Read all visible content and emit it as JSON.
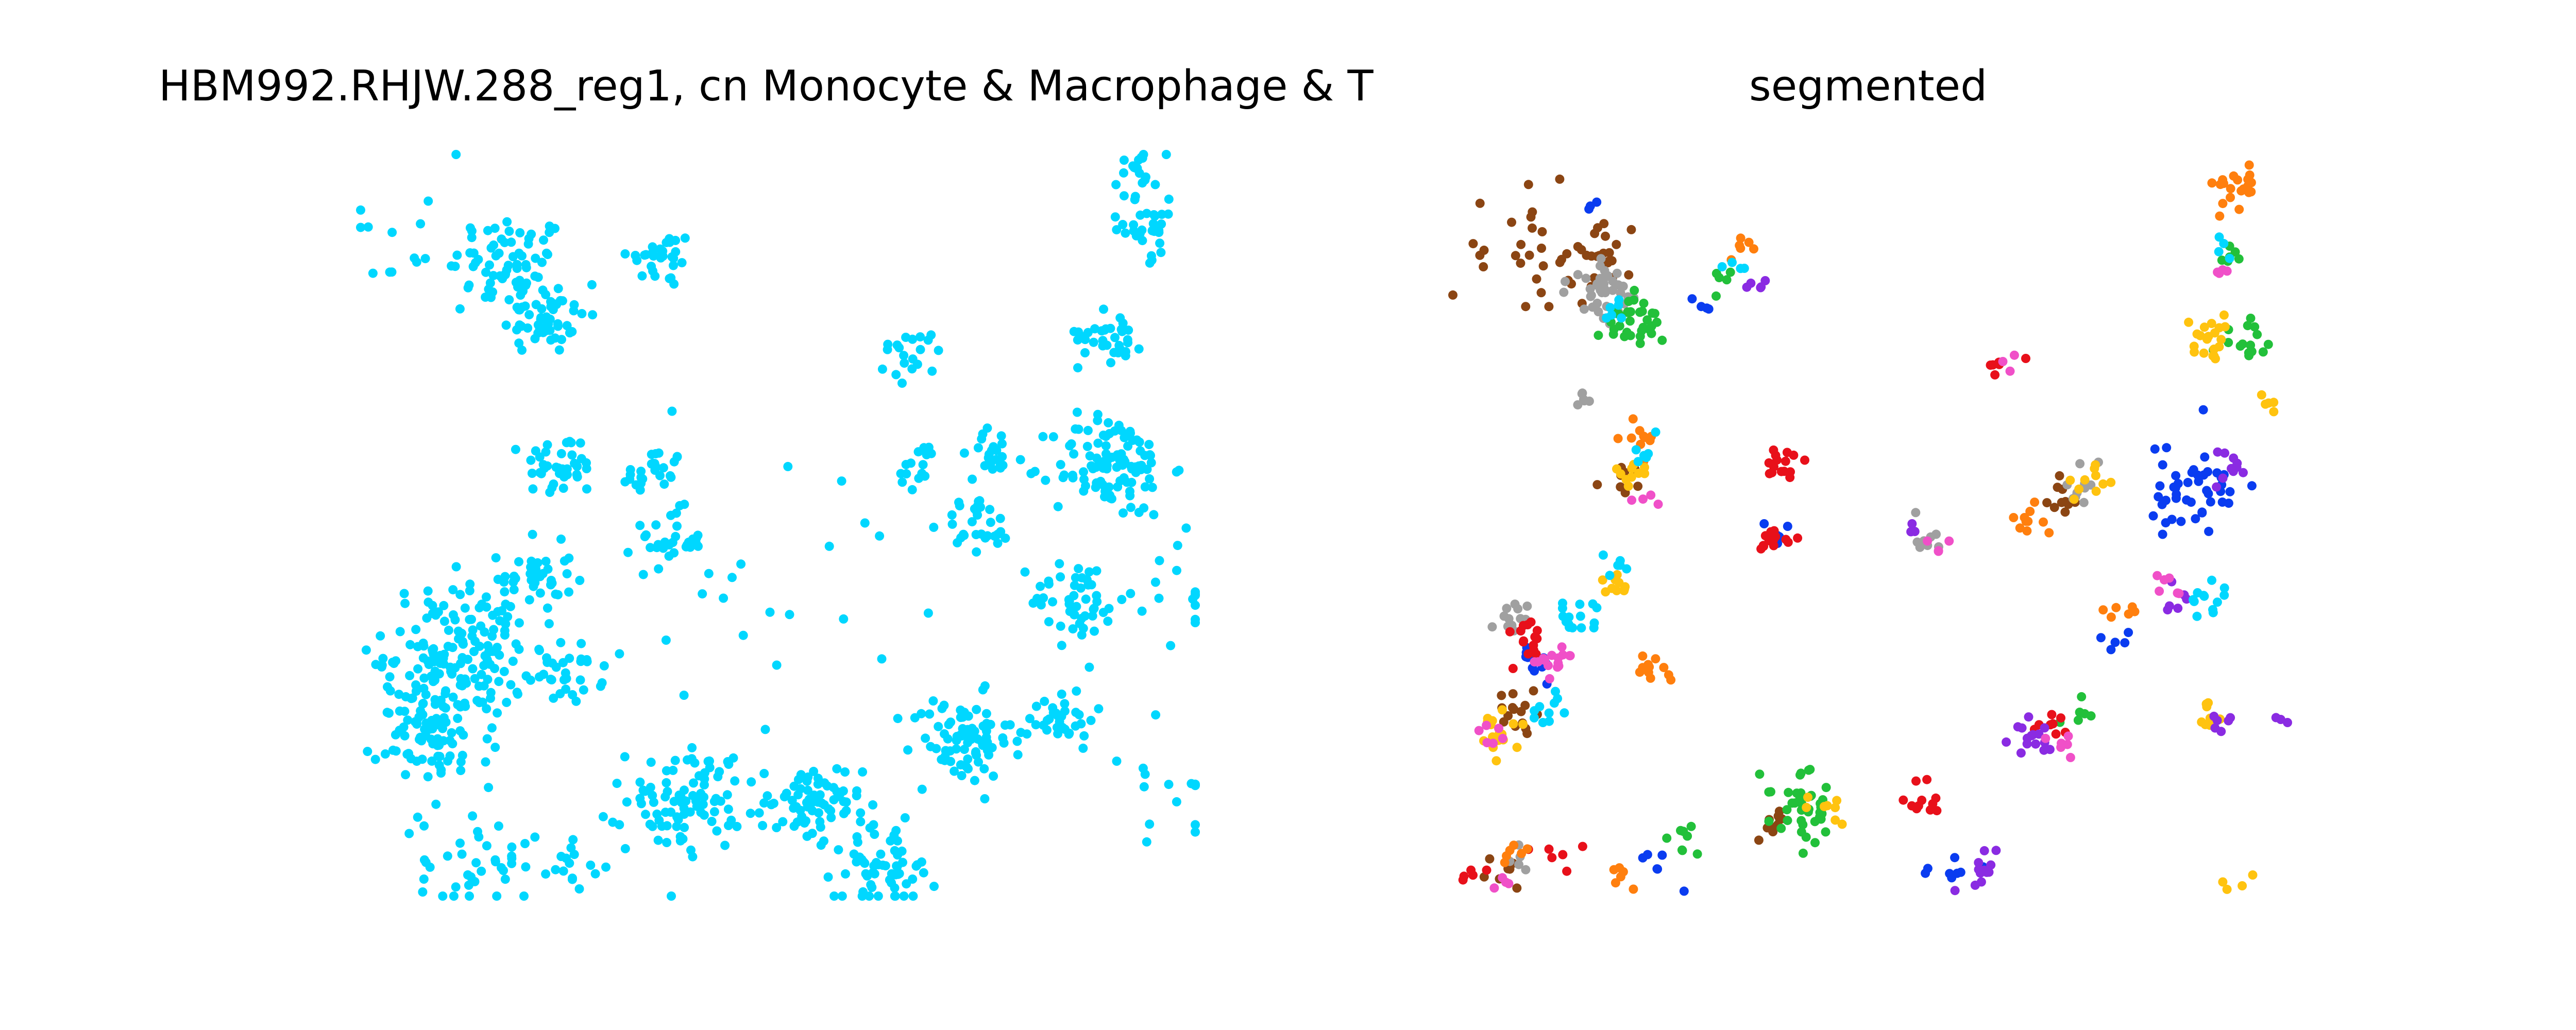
{
  "panels": [
    {
      "title": "HBM992.RHJW.288_reg1, cn Monocyte & Macrophage & T"
    },
    {
      "title": "segmented"
    }
  ],
  "chart_data": [
    {
      "type": "scatter",
      "title": "HBM992.RHJW.288_reg1, cn Monocyte & Macrophage & T",
      "xlabel": "",
      "ylabel": "",
      "axes_visible": false,
      "grid": false,
      "xlim": [
        0,
        1
      ],
      "ylim": [
        0,
        1
      ],
      "series": [
        {
          "color": "#00D7FF",
          "clusters": [
            {
              "x": 0.18,
              "y": 0.85,
              "spread": 0.035,
              "n": 70
            },
            {
              "x": 0.22,
              "y": 0.78,
              "spread": 0.025,
              "n": 50
            },
            {
              "x": 0.36,
              "y": 0.86,
              "spread": 0.02,
              "n": 30
            },
            {
              "x": 0.24,
              "y": 0.58,
              "spread": 0.022,
              "n": 40
            },
            {
              "x": 0.35,
              "y": 0.57,
              "spread": 0.018,
              "n": 25
            },
            {
              "x": 0.37,
              "y": 0.48,
              "spread": 0.02,
              "n": 30
            },
            {
              "x": 0.21,
              "y": 0.43,
              "spread": 0.022,
              "n": 35
            },
            {
              "x": 0.12,
              "y": 0.33,
              "spread": 0.045,
              "n": 160
            },
            {
              "x": 0.09,
              "y": 0.22,
              "spread": 0.035,
              "n": 90
            },
            {
              "x": 0.25,
              "y": 0.3,
              "spread": 0.02,
              "n": 30
            },
            {
              "x": 0.39,
              "y": 0.13,
              "spread": 0.035,
              "n": 90
            },
            {
              "x": 0.54,
              "y": 0.12,
              "spread": 0.03,
              "n": 70
            },
            {
              "x": 0.63,
              "y": 0.04,
              "spread": 0.03,
              "n": 60
            },
            {
              "x": 0.72,
              "y": 0.21,
              "spread": 0.03,
              "n": 80
            },
            {
              "x": 0.84,
              "y": 0.24,
              "spread": 0.02,
              "n": 35
            },
            {
              "x": 0.86,
              "y": 0.4,
              "spread": 0.028,
              "n": 50
            },
            {
              "x": 0.9,
              "y": 0.58,
              "spread": 0.035,
              "n": 110
            },
            {
              "x": 0.76,
              "y": 0.6,
              "spread": 0.015,
              "n": 20
            },
            {
              "x": 0.74,
              "y": 0.5,
              "spread": 0.02,
              "n": 30
            },
            {
              "x": 0.67,
              "y": 0.58,
              "spread": 0.015,
              "n": 15
            },
            {
              "x": 0.66,
              "y": 0.73,
              "spread": 0.02,
              "n": 20
            },
            {
              "x": 0.9,
              "y": 0.76,
              "spread": 0.02,
              "n": 35
            },
            {
              "x": 0.94,
              "y": 0.9,
              "spread": 0.02,
              "n": 30
            },
            {
              "x": 0.93,
              "y": 0.98,
              "spread": 0.018,
              "n": 20
            },
            {
              "x": 0.14,
              "y": 0.05,
              "spread": 0.035,
              "n": 40
            },
            {
              "x": 0.26,
              "y": 0.03,
              "spread": 0.02,
              "n": 15
            },
            {
              "x": 0.06,
              "y": 0.9,
              "spread": 0.05,
              "n": 15
            },
            {
              "x": 0.5,
              "y": 0.4,
              "spread": 0.12,
              "n": 30
            },
            {
              "x": 0.98,
              "y": 0.4,
              "spread": 0.04,
              "n": 15
            },
            {
              "x": 0.97,
              "y": 0.15,
              "spread": 0.05,
              "n": 15
            }
          ]
        }
      ]
    },
    {
      "type": "scatter",
      "title": "segmented",
      "xlabel": "",
      "ylabel": "",
      "axes_visible": false,
      "grid": false,
      "xlim": [
        0,
        1
      ],
      "ylim": [
        0,
        1
      ],
      "series": [
        {
          "color": "#8B4513",
          "clusters": [
            {
              "x": 0.1,
              "y": 0.87,
              "spread": 0.05,
              "n": 30
            },
            {
              "x": 0.17,
              "y": 0.86,
              "spread": 0.02,
              "n": 20
            },
            {
              "x": 0.2,
              "y": 0.56,
              "spread": 0.012,
              "n": 8
            },
            {
              "x": 0.08,
              "y": 0.25,
              "spread": 0.015,
              "n": 15
            },
            {
              "x": 0.73,
              "y": 0.53,
              "spread": 0.012,
              "n": 10
            },
            {
              "x": 0.38,
              "y": 0.1,
              "spread": 0.012,
              "n": 10
            },
            {
              "x": 0.06,
              "y": 0.03,
              "spread": 0.012,
              "n": 8
            }
          ]
        },
        {
          "color": "#A0A0A0",
          "clusters": [
            {
              "x": 0.18,
              "y": 0.82,
              "spread": 0.02,
              "n": 40
            },
            {
              "x": 0.16,
              "y": 0.67,
              "spread": 0.008,
              "n": 6
            },
            {
              "x": 0.07,
              "y": 0.37,
              "spread": 0.012,
              "n": 12
            },
            {
              "x": 0.57,
              "y": 0.48,
              "spread": 0.012,
              "n": 8
            },
            {
              "x": 0.75,
              "y": 0.56,
              "spread": 0.012,
              "n": 10
            },
            {
              "x": 0.08,
              "y": 0.05,
              "spread": 0.01,
              "n": 5
            }
          ]
        },
        {
          "color": "#22C03A",
          "clusters": [
            {
              "x": 0.22,
              "y": 0.77,
              "spread": 0.02,
              "n": 35
            },
            {
              "x": 0.42,
              "y": 0.12,
              "spread": 0.025,
              "n": 40
            },
            {
              "x": 0.27,
              "y": 0.07,
              "spread": 0.012,
              "n": 8
            },
            {
              "x": 0.95,
              "y": 0.75,
              "spread": 0.015,
              "n": 15
            },
            {
              "x": 0.93,
              "y": 0.86,
              "spread": 0.008,
              "n": 6
            },
            {
              "x": 0.75,
              "y": 0.25,
              "spread": 0.01,
              "n": 6
            },
            {
              "x": 0.32,
              "y": 0.83,
              "spread": 0.01,
              "n": 5
            }
          ]
        },
        {
          "color": "#0A3CF0",
          "clusters": [
            {
              "x": 0.88,
              "y": 0.55,
              "spread": 0.03,
              "n": 45
            },
            {
              "x": 0.1,
              "y": 0.32,
              "spread": 0.015,
              "n": 12
            },
            {
              "x": 0.25,
              "y": 0.04,
              "spread": 0.01,
              "n": 6
            },
            {
              "x": 0.6,
              "y": 0.03,
              "spread": 0.015,
              "n": 8
            },
            {
              "x": 0.38,
              "y": 0.5,
              "spread": 0.01,
              "n": 5
            },
            {
              "x": 0.17,
              "y": 0.93,
              "spread": 0.005,
              "n": 3
            },
            {
              "x": 0.3,
              "y": 0.8,
              "spread": 0.008,
              "n": 4
            },
            {
              "x": 0.8,
              "y": 0.35,
              "spread": 0.01,
              "n": 5
            }
          ]
        },
        {
          "color": "#E8101A",
          "clusters": [
            {
              "x": 0.39,
              "y": 0.58,
              "spread": 0.012,
              "n": 15
            },
            {
              "x": 0.39,
              "y": 0.48,
              "spread": 0.012,
              "n": 15
            },
            {
              "x": 0.56,
              "y": 0.12,
              "spread": 0.015,
              "n": 12
            },
            {
              "x": 0.09,
              "y": 0.35,
              "spread": 0.015,
              "n": 15
            },
            {
              "x": 0.66,
              "y": 0.71,
              "spread": 0.01,
              "n": 6
            },
            {
              "x": 0.03,
              "y": 0.03,
              "spread": 0.01,
              "n": 5
            },
            {
              "x": 0.12,
              "y": 0.05,
              "spread": 0.015,
              "n": 6
            },
            {
              "x": 0.72,
              "y": 0.23,
              "spread": 0.012,
              "n": 8
            }
          ]
        },
        {
          "color": "#FF7F0E",
          "clusters": [
            {
              "x": 0.94,
              "y": 0.96,
              "spread": 0.015,
              "n": 20
            },
            {
              "x": 0.23,
              "y": 0.62,
              "spread": 0.012,
              "n": 10
            },
            {
              "x": 0.24,
              "y": 0.3,
              "spread": 0.012,
              "n": 12
            },
            {
              "x": 0.7,
              "y": 0.51,
              "spread": 0.012,
              "n": 10
            },
            {
              "x": 0.8,
              "y": 0.38,
              "spread": 0.01,
              "n": 6
            },
            {
              "x": 0.35,
              "y": 0.87,
              "spread": 0.01,
              "n": 6
            },
            {
              "x": 0.2,
              "y": 0.03,
              "spread": 0.01,
              "n": 6
            },
            {
              "x": 0.07,
              "y": 0.06,
              "spread": 0.012,
              "n": 6
            }
          ]
        },
        {
          "color": "#FFC30F",
          "clusters": [
            {
              "x": 0.91,
              "y": 0.75,
              "spread": 0.015,
              "n": 20
            },
            {
              "x": 0.05,
              "y": 0.22,
              "spread": 0.015,
              "n": 20
            },
            {
              "x": 0.2,
              "y": 0.42,
              "spread": 0.012,
              "n": 10
            },
            {
              "x": 0.21,
              "y": 0.57,
              "spread": 0.012,
              "n": 10
            },
            {
              "x": 0.77,
              "y": 0.56,
              "spread": 0.012,
              "n": 10
            },
            {
              "x": 0.91,
              "y": 0.25,
              "spread": 0.012,
              "n": 8
            },
            {
              "x": 0.45,
              "y": 0.12,
              "spread": 0.012,
              "n": 8
            },
            {
              "x": 0.98,
              "y": 0.67,
              "spread": 0.008,
              "n": 5
            },
            {
              "x": 0.94,
              "y": 0.02,
              "spread": 0.008,
              "n": 4
            }
          ]
        },
        {
          "color": "#8A2BE2",
          "clusters": [
            {
              "x": 0.69,
              "y": 0.21,
              "spread": 0.015,
              "n": 15
            },
            {
              "x": 0.64,
              "y": 0.04,
              "spread": 0.015,
              "n": 12
            },
            {
              "x": 0.93,
              "y": 0.57,
              "spread": 0.012,
              "n": 10
            },
            {
              "x": 0.87,
              "y": 0.4,
              "spread": 0.01,
              "n": 6
            },
            {
              "x": 0.92,
              "y": 0.24,
              "spread": 0.01,
              "n": 6
            },
            {
              "x": 0.36,
              "y": 0.83,
              "spread": 0.008,
              "n": 5
            },
            {
              "x": 0.55,
              "y": 0.49,
              "spread": 0.006,
              "n": 3
            },
            {
              "x": 0.99,
              "y": 0.24,
              "spread": 0.006,
              "n": 3
            }
          ]
        },
        {
          "color": "#F050C8",
          "clusters": [
            {
              "x": 0.12,
              "y": 0.31,
              "spread": 0.015,
              "n": 15
            },
            {
              "x": 0.73,
              "y": 0.2,
              "spread": 0.01,
              "n": 6
            },
            {
              "x": 0.86,
              "y": 0.42,
              "spread": 0.01,
              "n": 6
            },
            {
              "x": 0.23,
              "y": 0.54,
              "spread": 0.008,
              "n": 4
            },
            {
              "x": 0.58,
              "y": 0.47,
              "spread": 0.008,
              "n": 4
            },
            {
              "x": 0.92,
              "y": 0.84,
              "spread": 0.008,
              "n": 4
            },
            {
              "x": 0.06,
              "y": 0.02,
              "spread": 0.008,
              "n": 4
            },
            {
              "x": 0.04,
              "y": 0.22,
              "spread": 0.01,
              "n": 6
            },
            {
              "x": 0.67,
              "y": 0.72,
              "spread": 0.006,
              "n": 3
            }
          ]
        },
        {
          "color": "#00D7FF",
          "clusters": [
            {
              "x": 0.15,
              "y": 0.37,
              "spread": 0.015,
              "n": 15
            },
            {
              "x": 0.12,
              "y": 0.25,
              "spread": 0.012,
              "n": 10
            },
            {
              "x": 0.2,
              "y": 0.44,
              "spread": 0.01,
              "n": 6
            },
            {
              "x": 0.23,
              "y": 0.6,
              "spread": 0.01,
              "n": 6
            },
            {
              "x": 0.9,
              "y": 0.4,
              "spread": 0.015,
              "n": 12
            },
            {
              "x": 0.92,
              "y": 0.87,
              "spread": 0.008,
              "n": 4
            },
            {
              "x": 0.19,
              "y": 0.79,
              "spread": 0.01,
              "n": 6
            },
            {
              "x": 0.33,
              "y": 0.85,
              "spread": 0.008,
              "n": 4
            }
          ]
        }
      ]
    }
  ]
}
